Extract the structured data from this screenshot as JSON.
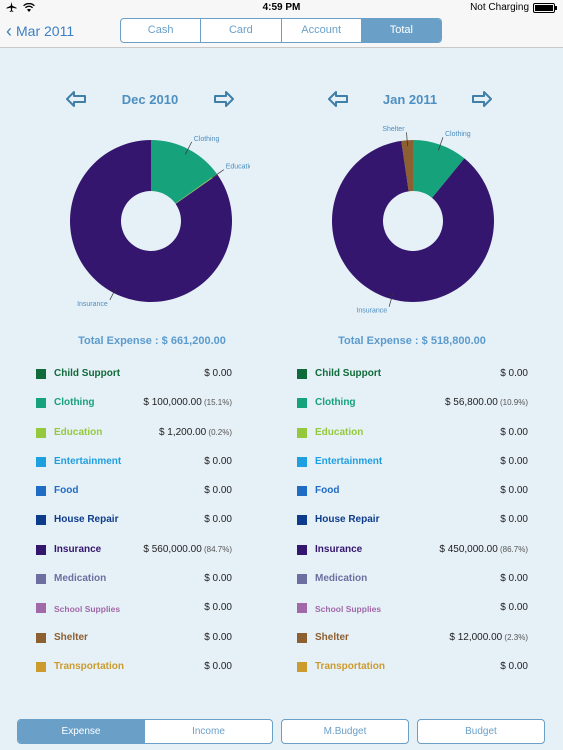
{
  "status_bar": {
    "time": "4:59 PM",
    "charging": "Not Charging",
    "icons": [
      "airplane-icon",
      "wifi-icon",
      "battery-icon"
    ]
  },
  "nav": {
    "back_label": "Mar 2011",
    "tabs": [
      {
        "label": "Cash",
        "selected": false
      },
      {
        "label": "Card",
        "selected": false
      },
      {
        "label": "Account",
        "selected": false
      },
      {
        "label": "Total",
        "selected": true
      }
    ]
  },
  "categories": [
    {
      "name": "Child Support",
      "color": "#0f6b3a"
    },
    {
      "name": "Clothing",
      "color": "#16a27a"
    },
    {
      "name": "Education",
      "color": "#95c93d"
    },
    {
      "name": "Entertainment",
      "color": "#1e9fe0"
    },
    {
      "name": "Food",
      "color": "#1f6cc4"
    },
    {
      "name": "House Repair",
      "color": "#0e3c8c"
    },
    {
      "name": "Insurance",
      "color": "#35166e"
    },
    {
      "name": "Medication",
      "color": "#6c6fa0"
    },
    {
      "name": "School Supplies",
      "color": "#a169a8"
    },
    {
      "name": "Shelter",
      "color": "#8c6030"
    },
    {
      "name": "Transportation",
      "color": "#cc9b2e"
    }
  ],
  "panels": [
    {
      "month": "Dec 2010",
      "total_label": "Total Expense : $ 661,200.00",
      "amounts": [
        {
          "amount": "$ 0.00",
          "pct": ""
        },
        {
          "amount": "$ 100,000.00",
          "pct": "(15.1%)"
        },
        {
          "amount": "$ 1,200.00",
          "pct": "(0.2%)"
        },
        {
          "amount": "$ 0.00",
          "pct": ""
        },
        {
          "amount": "$ 0.00",
          "pct": ""
        },
        {
          "amount": "$ 0.00",
          "pct": ""
        },
        {
          "amount": "$ 560,000.00",
          "pct": "(84.7%)"
        },
        {
          "amount": "$ 0.00",
          "pct": ""
        },
        {
          "amount": "$ 0.00",
          "pct": ""
        },
        {
          "amount": "$ 0.00",
          "pct": ""
        },
        {
          "amount": "$ 0.00",
          "pct": ""
        }
      ]
    },
    {
      "month": "Jan 2011",
      "total_label": "Total Expense : $ 518,800.00",
      "amounts": [
        {
          "amount": "$ 0.00",
          "pct": ""
        },
        {
          "amount": "$ 56,800.00",
          "pct": "(10.9%)"
        },
        {
          "amount": "$ 0.00",
          "pct": ""
        },
        {
          "amount": "$ 0.00",
          "pct": ""
        },
        {
          "amount": "$ 0.00",
          "pct": ""
        },
        {
          "amount": "$ 0.00",
          "pct": ""
        },
        {
          "amount": "$ 450,000.00",
          "pct": "(86.7%)"
        },
        {
          "amount": "$ 0.00",
          "pct": ""
        },
        {
          "amount": "$ 0.00",
          "pct": ""
        },
        {
          "amount": "$ 12,000.00",
          "pct": "(2.3%)"
        },
        {
          "amount": "$ 0.00",
          "pct": ""
        }
      ]
    }
  ],
  "chart_data": [
    {
      "type": "pie",
      "title": "Dec 2010",
      "slices": [
        {
          "label": "Clothing",
          "value": 100000,
          "color": "#16a27a"
        },
        {
          "label": "Education",
          "value": 1200,
          "color": "#95c93d"
        },
        {
          "label": "Insurance",
          "value": 560000,
          "color": "#35166e"
        }
      ]
    },
    {
      "type": "pie",
      "title": "Jan 2011",
      "slices": [
        {
          "label": "Clothing",
          "value": 56800,
          "color": "#16a27a"
        },
        {
          "label": "Insurance",
          "value": 450000,
          "color": "#35166e"
        },
        {
          "label": "Shelter",
          "value": 12000,
          "color": "#8c6030"
        }
      ]
    }
  ],
  "bottom": {
    "expense": "Expense",
    "income": "Income",
    "mbudget": "M.Budget",
    "budget": "Budget"
  }
}
